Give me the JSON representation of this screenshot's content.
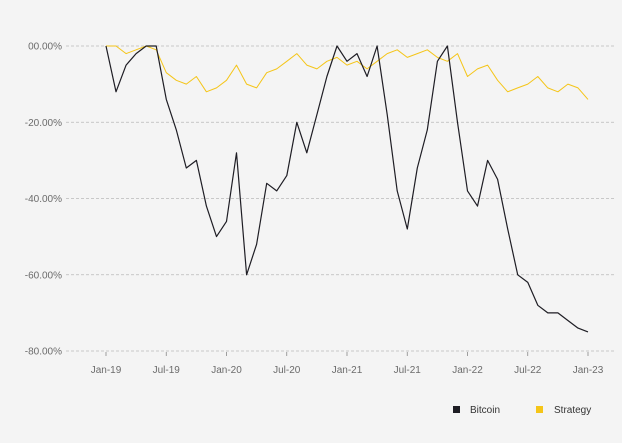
{
  "chart_data": {
    "type": "line",
    "title": "",
    "xlabel": "",
    "ylabel": "",
    "y_unit": "percent drawdown",
    "ylim": [
      -80,
      0
    ],
    "yticks": [
      0,
      -20,
      -40,
      -60,
      -80
    ],
    "ytick_labels": [
      "00.00%",
      "-20.00%",
      "-40.00%",
      "-60.00%",
      "-80.00%"
    ],
    "xticks": [
      "Jan-19",
      "Jul-19",
      "Jan-20",
      "Jul-20",
      "Jan-21",
      "Jul-21",
      "Jan-22",
      "Jul-22",
      "Jan-23"
    ],
    "grid": "horizontal dashed",
    "legend_position": "bottom-right",
    "colors": {
      "Bitcoin": "#1e1d24",
      "Strategy": "#f5c518"
    },
    "x": [
      "2019-01",
      "2019-02",
      "2019-03",
      "2019-04",
      "2019-05",
      "2019-06",
      "2019-07",
      "2019-08",
      "2019-09",
      "2019-10",
      "2019-11",
      "2019-12",
      "2020-01",
      "2020-02",
      "2020-03",
      "2020-04",
      "2020-05",
      "2020-06",
      "2020-07",
      "2020-08",
      "2020-09",
      "2020-10",
      "2020-11",
      "2020-12",
      "2021-01",
      "2021-02",
      "2021-03",
      "2021-04",
      "2021-05",
      "2021-06",
      "2021-07",
      "2021-08",
      "2021-09",
      "2021-10",
      "2021-11",
      "2021-12",
      "2022-01",
      "2022-02",
      "2022-03",
      "2022-04",
      "2022-05",
      "2022-06",
      "2022-07",
      "2022-08",
      "2022-09",
      "2022-10",
      "2022-11",
      "2022-12",
      "2023-01"
    ],
    "series": [
      {
        "name": "Bitcoin",
        "values": [
          0,
          -12,
          -5,
          -2,
          0,
          0,
          -14,
          -22,
          -32,
          -30,
          -42,
          -50,
          -46,
          -28,
          -60,
          -52,
          -36,
          -38,
          -34,
          -20,
          -28,
          -18,
          -8,
          0,
          -4,
          -2,
          -8,
          0,
          -18,
          -38,
          -48,
          -32,
          -22,
          -4,
          0,
          -20,
          -38,
          -42,
          -30,
          -35,
          -48,
          -60,
          -62,
          -68,
          -70,
          -70,
          -72,
          -74,
          -75
        ]
      },
      {
        "name": "Strategy",
        "values": [
          0,
          0,
          -2,
          -1,
          0,
          -1,
          -7,
          -9,
          -10,
          -8,
          -12,
          -11,
          -9,
          -5,
          -10,
          -11,
          -7,
          -6,
          -4,
          -2,
          -5,
          -6,
          -4,
          -3,
          -5,
          -4,
          -6,
          -4,
          -2,
          -1,
          -3,
          -2,
          -1,
          -3,
          -4,
          -2,
          -8,
          -6,
          -5,
          -9,
          -12,
          -11,
          -10,
          -8,
          -11,
          -12,
          -10,
          -11,
          -14
        ]
      }
    ]
  }
}
